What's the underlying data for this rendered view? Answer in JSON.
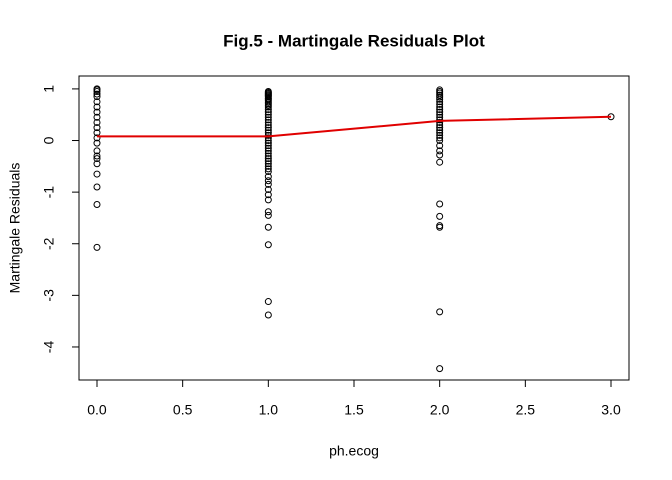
{
  "chart_data": {
    "type": "scatter",
    "title": "Fig.5 - Martingale Residuals Plot",
    "xlabel": "ph.ecog",
    "ylabel": "Martingale Residuals",
    "xlim": [
      -0.105,
      3.105
    ],
    "ylim": [
      -4.64,
      1.25
    ],
    "xticks": [
      {
        "value": 0,
        "label": "0.0"
      },
      {
        "value": 0.5,
        "label": "0.5"
      },
      {
        "value": 1,
        "label": "1.0"
      },
      {
        "value": 1.5,
        "label": "1.5"
      },
      {
        "value": 2,
        "label": "2.0"
      },
      {
        "value": 2.5,
        "label": "2.5"
      },
      {
        "value": 3,
        "label": "3.0"
      }
    ],
    "yticks": [
      -4,
      -3,
      -2,
      -1,
      0,
      1
    ],
    "series": [
      {
        "kind": "points",
        "color": "#000000",
        "x": [
          0,
          0,
          0,
          0,
          0,
          0,
          0,
          0,
          0,
          0,
          0,
          0,
          0,
          0,
          0,
          0,
          0,
          0,
          0,
          0,
          0,
          0,
          1,
          1,
          1,
          1,
          1,
          1,
          1,
          1,
          1,
          1,
          1,
          1,
          1,
          1,
          1,
          1,
          1,
          1,
          1,
          1,
          1,
          1,
          1,
          1,
          1,
          1,
          1,
          1,
          1,
          1,
          1,
          1,
          1,
          1,
          1,
          1,
          1,
          1,
          1,
          1,
          1,
          1,
          1,
          1,
          1,
          1,
          1,
          1,
          1,
          1,
          2,
          2,
          2,
          2,
          2,
          2,
          2,
          2,
          2,
          2,
          2,
          2,
          2,
          2,
          2,
          2,
          2,
          2,
          2,
          2,
          2,
          2,
          2,
          2,
          2,
          2,
          2,
          2,
          2,
          2,
          2,
          2,
          3
        ],
        "values": [
          1.0,
          0.98,
          0.95,
          0.9,
          0.85,
          0.75,
          0.65,
          0.55,
          0.45,
          0.35,
          0.25,
          0.15,
          0.05,
          -0.05,
          -0.2,
          -0.3,
          -0.35,
          -0.45,
          -0.65,
          -0.9,
          -1.24,
          -2.07,
          0.95,
          0.93,
          0.91,
          0.89,
          0.87,
          0.85,
          0.82,
          0.8,
          0.77,
          0.74,
          0.71,
          0.68,
          0.65,
          0.6,
          0.55,
          0.5,
          0.45,
          0.4,
          0.35,
          0.3,
          0.25,
          0.2,
          0.15,
          0.1,
          0.05,
          0,
          -0.05,
          -0.1,
          -0.15,
          -0.2,
          -0.25,
          -0.3,
          -0.35,
          -0.4,
          -0.45,
          -0.5,
          -0.55,
          -0.6,
          -0.7,
          -0.78,
          -0.85,
          -0.95,
          -1.05,
          -1.15,
          -1.38,
          -1.45,
          -1.68,
          -2.02,
          -3.12,
          -3.38,
          0.98,
          0.95,
          0.92,
          0.88,
          0.84,
          0.8,
          0.75,
          0.7,
          0.65,
          0.6,
          0.55,
          0.5,
          0.45,
          0.4,
          0.35,
          0.3,
          0.25,
          0.2,
          0.15,
          0.1,
          0.05,
          0,
          -0.1,
          -0.2,
          -0.28,
          -0.42,
          -1.23,
          -1.47,
          -1.65,
          -1.68,
          -3.32,
          -4.42,
          0.46
        ]
      },
      {
        "kind": "line",
        "color": "#e00000",
        "x": [
          0,
          1,
          2,
          3
        ],
        "values": [
          0.08,
          0.08,
          0.38,
          0.46
        ]
      }
    ]
  }
}
